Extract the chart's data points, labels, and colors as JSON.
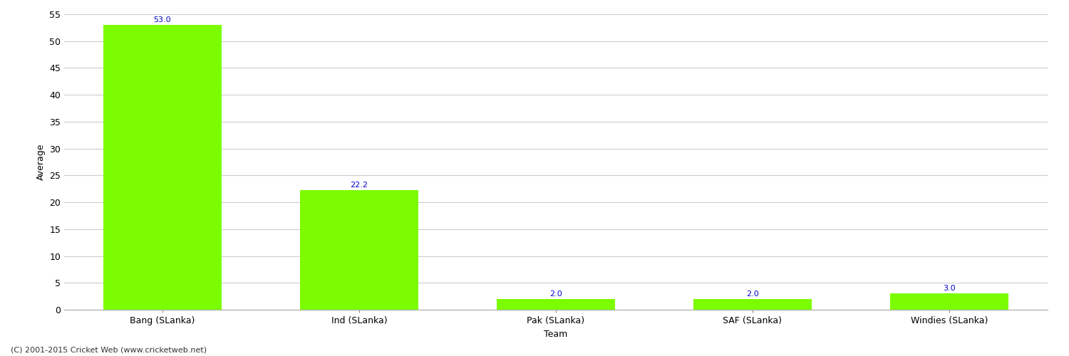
{
  "categories": [
    "Bang (SLanka)",
    "Ind (SLanka)",
    "Pak (SLanka)",
    "SAF (SLanka)",
    "Windies (SLanka)"
  ],
  "values": [
    53.0,
    22.2,
    2.0,
    2.0,
    3.0
  ],
  "bar_color": "#7cfc00",
  "bar_edge_color": "#7cfc00",
  "label_color": "#0000cc",
  "ylabel": "Average",
  "xlabel": "Team",
  "ylim": [
    0,
    55
  ],
  "yticks": [
    0,
    5,
    10,
    15,
    20,
    25,
    30,
    35,
    40,
    45,
    50,
    55
  ],
  "value_labels": [
    "53.0",
    "22.2",
    "2.0",
    "2.0",
    "3.0"
  ],
  "background_color": "#ffffff",
  "grid_color": "#cccccc",
  "footer_text": "(C) 2001-2015 Cricket Web (www.cricketweb.net)",
  "label_fontsize": 9,
  "axis_label_fontsize": 9,
  "footer_fontsize": 8,
  "value_fontsize": 8,
  "bar_width": 0.6
}
